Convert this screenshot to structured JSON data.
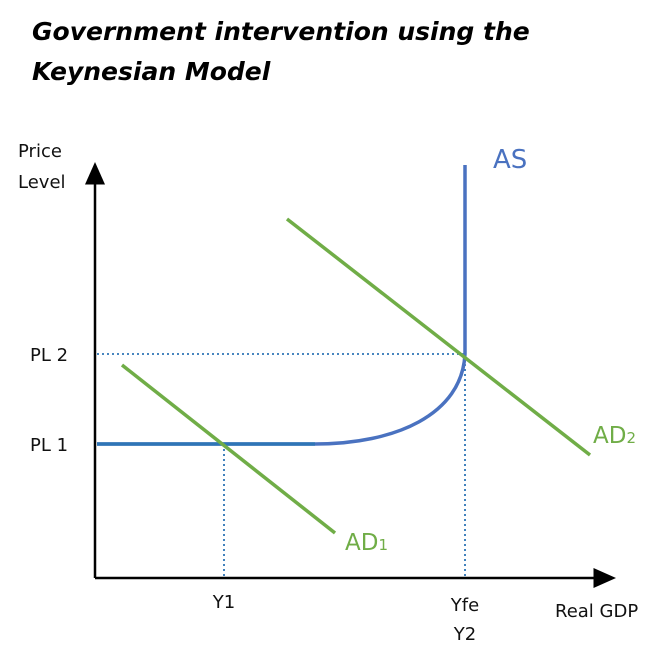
{
  "title": [
    "Government intervention using the",
    "Keynesian Model"
  ],
  "y_axis_label": [
    "Price",
    "Level"
  ],
  "x_axis_label": "Real GDP",
  "y_ticks": [
    "PL 2",
    "PL 1"
  ],
  "x_ticks": [
    "Y1",
    "Yfe",
    "Y2"
  ],
  "curves": {
    "as": "AS",
    "ad1": {
      "text": "AD",
      "subscript": "1"
    },
    "ad2": {
      "text": "AD",
      "subscript": "2"
    }
  }
}
